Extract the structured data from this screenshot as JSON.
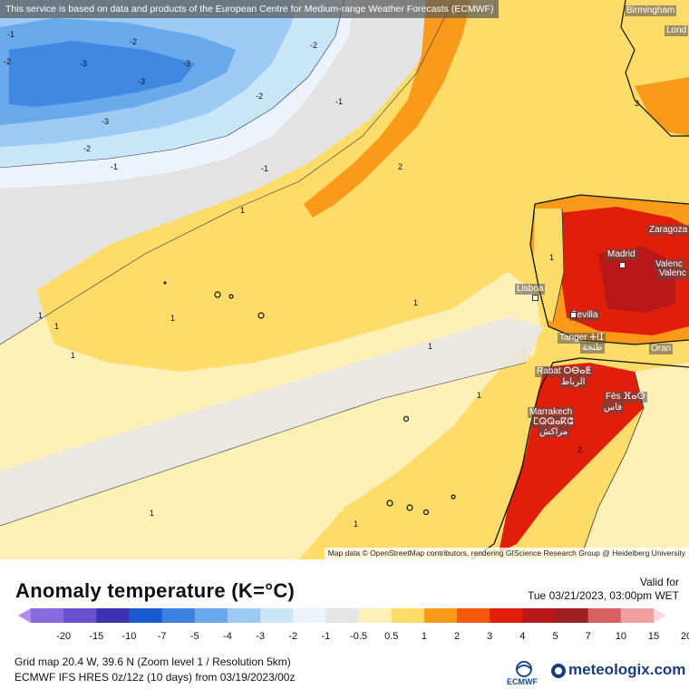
{
  "disclaimer": "This service is based on data and products of the European Centre for Medium-range Weather Forecasts (ECMWF)",
  "attribution": "Map data © OpenStreetMap contributors, rendering GIScience Research Group @ Heidelberg University",
  "cities": {
    "birmingham": "Birmingham",
    "london": "Lond",
    "zaragoza": "Zaragoza",
    "madrid": "Madrid",
    "valencia1": "Valenc",
    "valencia2": "Valenc",
    "lisboa": "Lisboa",
    "sevilla": "Sevilla",
    "tanger": "Tanger ⵜⵏⵊ",
    "tanger_ar": "طنجة",
    "oran": "Oran",
    "rabat": "Rabat ⵔⴱⴰⵟ",
    "rabat_ar": "الرباط",
    "fes": "Fès ⴼⴰⵙ",
    "fes_ar": "فاس",
    "marrakech": "Marrakech",
    "marrakech_tz": "ⵎⵕⵕⴰⴽⵛ",
    "marrakech_ar": "مراكش"
  },
  "contour_labels": {
    "neg1": "-1",
    "neg2": "-2",
    "neg3": "-3",
    "pos1": "1",
    "pos2": "2",
    "pos3": "3"
  },
  "legend": {
    "title": "Anomaly temperature (K=°C)",
    "valid_label": "Valid for",
    "valid_time": "Tue 03/21/2023, 03:00pm WET",
    "ticks": [
      "-20",
      "-15",
      "-10",
      "-7",
      "-5",
      "-4",
      "-3",
      "-2",
      "-1",
      "-0.5",
      "0.5",
      "1",
      "2",
      "3",
      "4",
      "5",
      "7",
      "10",
      "15",
      "20"
    ],
    "colors": [
      "#b08cf0",
      "#8a6ae0",
      "#6a4fd0",
      "#3a32b0",
      "#1a5ad0",
      "#3a82e0",
      "#6aa8ec",
      "#9ccaf2",
      "#c8e6f8",
      "#eaf4fa",
      "#e6e6e6",
      "#fff0b8",
      "#fddc6a",
      "#fa9a1a",
      "#f25a0a",
      "#e01e0a",
      "#b81818",
      "#9e2020",
      "#d86060",
      "#f0a0a0",
      "#fcd8d8"
    ],
    "grid_info": "Grid map 20.4 W, 39.6 N (Zoom level 1 / Resolution 5km)",
    "model_info": "ECMWF IFS HRES 0z/12z (10 days)  from  03/19/2023/00z"
  },
  "logos": {
    "ecmwf": "ECMWF",
    "brand": "meteologix.com"
  }
}
